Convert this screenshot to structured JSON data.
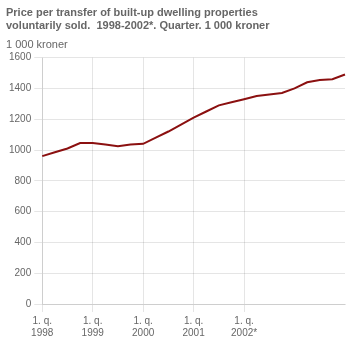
{
  "chart_data": {
    "type": "line",
    "title": [
      "Price per transfer of built-up dwelling properties",
      "voluntarily sold.  1998-2002*. Quarter. 1 000 kroner"
    ],
    "ylabel": "1 000 kroner",
    "categories": [
      "1. q.\n1998",
      null,
      null,
      null,
      "1. q.\n1999",
      null,
      null,
      null,
      "1. q.\n2000",
      null,
      null,
      null,
      "1. q.\n2001",
      null,
      null,
      null,
      "1. q.\n2002*",
      null,
      null,
      null,
      null,
      null,
      null,
      null,
      null
    ],
    "values": [
      960,
      985,
      1010,
      1045,
      1045,
      1035,
      1025,
      1035,
      1040,
      1080,
      1120,
      1165,
      1210,
      1250,
      1290,
      1310,
      1330,
      1350,
      1360,
      1370,
      1400,
      1440,
      1455,
      1460,
      1490
    ],
    "color": "#8b1010",
    "ylim": [
      0,
      1600
    ],
    "yticks": [
      0,
      200,
      400,
      600,
      800,
      1000,
      1200,
      1400,
      1600
    ],
    "grid": true
  }
}
